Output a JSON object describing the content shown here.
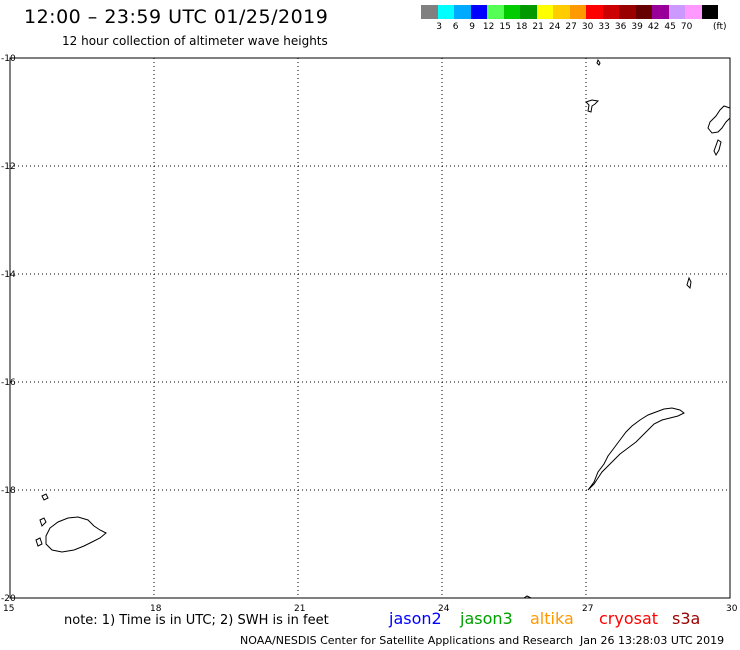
{
  "header": {
    "title": "12:00 – 23:59 UTC 01/25/2019",
    "subtitle": "12 hour collection of altimeter wave heights"
  },
  "colorbar": {
    "colors": [
      "#808080",
      "#00ffff",
      "#00aaff",
      "#0000ff",
      "#55ff55",
      "#00cc00",
      "#009900",
      "#ffff00",
      "#ffcc00",
      "#ff9900",
      "#ff0000",
      "#cc0000",
      "#990000",
      "#660000",
      "#990099",
      "#cc99ff",
      "#ff99ff",
      "#000000"
    ],
    "labels": [
      "3",
      "6",
      "9",
      "12",
      "15",
      "18",
      "21",
      "24",
      "27",
      "30",
      "33",
      "36",
      "39",
      "42",
      "45",
      "70"
    ],
    "unit": "(ft)"
  },
  "map": {
    "lat_labels": [
      "-10",
      "-12",
      "-14",
      "-16",
      "-18",
      "-20"
    ],
    "lon_labels": [
      "15",
      "18",
      "21",
      "24",
      "27",
      "30"
    ]
  },
  "footer": {
    "note": "note: 1) Time is in UTC; 2) SWH is in feet",
    "satellites": [
      {
        "name": "jason2",
        "color": "#0000ff"
      },
      {
        "name": "jason3",
        "color": "#00a000"
      },
      {
        "name": "altika",
        "color": "#ff9900"
      },
      {
        "name": "cryosat",
        "color": "#ff0000"
      },
      {
        "name": "s3a",
        "color": "#990000"
      }
    ],
    "credit": "NOAA/NESDIS Center for Satellite Applications and Research",
    "timestamp": "Jan 26 13:28:03 UTC 2019"
  }
}
